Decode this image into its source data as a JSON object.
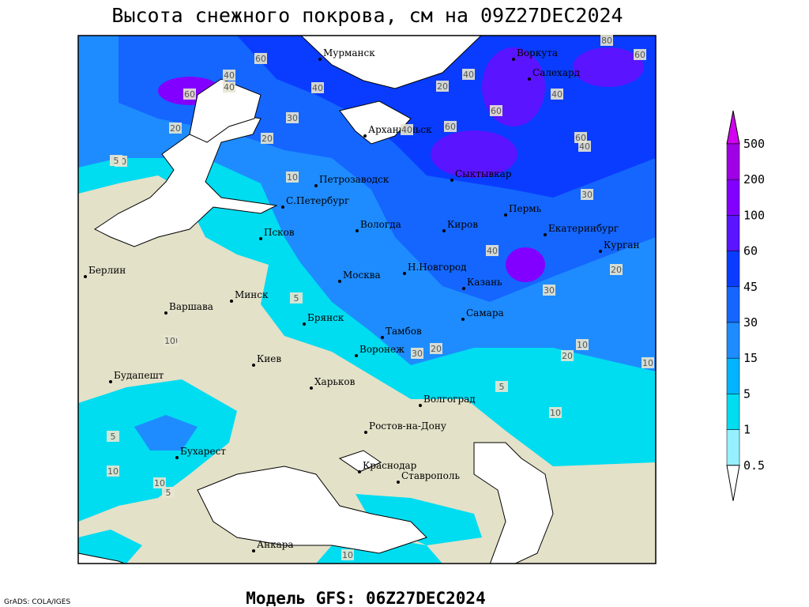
{
  "header": {
    "title": "Высота снежного покрова, см на 09Z27DEC2024"
  },
  "map": {
    "cities": [
      "Мурманск",
      "Воркута",
      "Салехард",
      "Архангельск",
      "Сыктывкар",
      "Петрозаводск",
      "С.Петербург",
      "Вологда",
      "Псков",
      "Киров",
      "Пермь",
      "Екатеринбург",
      "Курган",
      "Берлин",
      "Н.Новгород",
      "Москва",
      "Казань",
      "Минск",
      "Варшава",
      "Самара",
      "Брянск",
      "Тамбов",
      "Киев",
      "Воронеж",
      "Будапешт",
      "Харьков",
      "Волгоград",
      "Ростов-на-Дону",
      "Бухарест",
      "Краснодар",
      "Ставрополь",
      "Анкара"
    ],
    "contour_labels": [
      60,
      40,
      60,
      40,
      20,
      30,
      40,
      20,
      40,
      60,
      40,
      60,
      80,
      60,
      40,
      60,
      40,
      30,
      20,
      10,
      5,
      20,
      10,
      5,
      20,
      30,
      20,
      40,
      30,
      10,
      20,
      5,
      10,
      5,
      10,
      10,
      10,
      5,
      10,
      10
    ]
  },
  "legend": {
    "levels": [
      500,
      200,
      100,
      60,
      45,
      30,
      15,
      5,
      1,
      0.5
    ],
    "colors": [
      "#d200f0",
      "#a000e6",
      "#8200ff",
      "#5a14ff",
      "#0a3cff",
      "#1466ff",
      "#1e8cff",
      "#00b4ff",
      "#00dcf0",
      "#96f0ff",
      "#ffffff"
    ]
  },
  "footer": {
    "model": "Модель GFS: 06Z27DEC2024",
    "credit": "GrADS: COLA/IGES"
  }
}
